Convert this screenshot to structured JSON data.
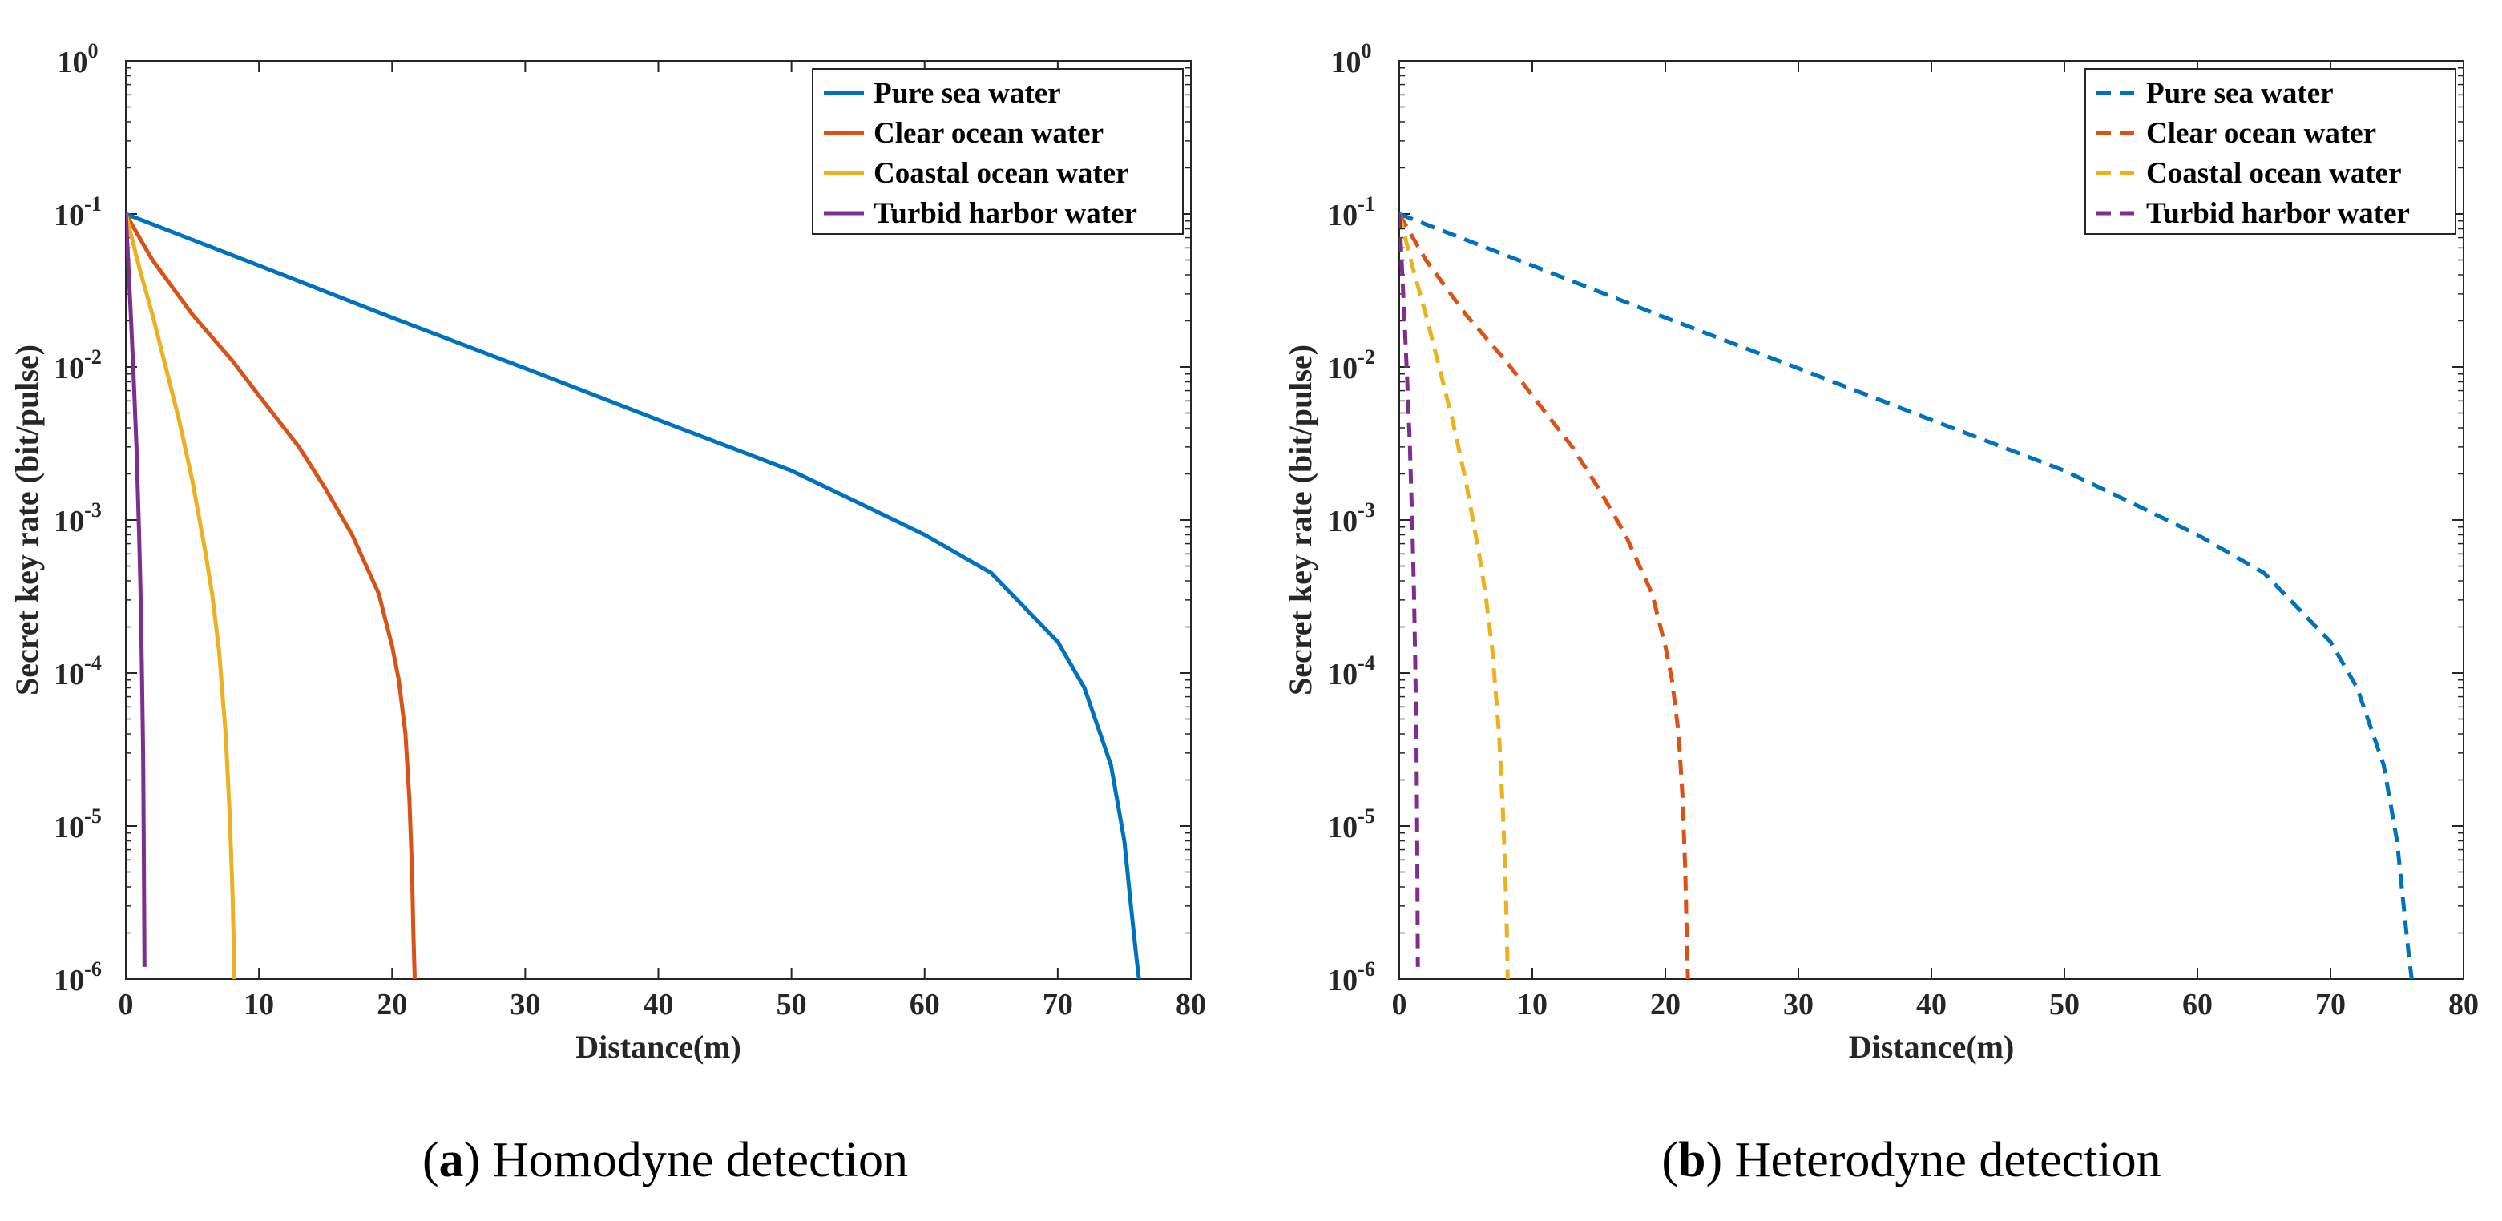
{
  "chart_data": [
    {
      "id": "a",
      "type": "line",
      "caption_letter": "a",
      "caption_title": "Homodyne detection",
      "xlabel": "Distance(m)",
      "ylabel": "Secret key rate (bit/pulse)",
      "xlim": [
        0,
        80
      ],
      "ylim": [
        1e-06,
        1
      ],
      "yscale": "log",
      "xticks": [
        "0",
        "10",
        "20",
        "30",
        "40",
        "50",
        "60",
        "70",
        "80"
      ],
      "yticks": [
        {
          "base": "10",
          "exp": "0"
        },
        {
          "base": "10",
          "exp": "-1"
        },
        {
          "base": "10",
          "exp": "-2"
        },
        {
          "base": "10",
          "exp": "-3"
        },
        {
          "base": "10",
          "exp": "-4"
        },
        {
          "base": "10",
          "exp": "-5"
        },
        {
          "base": "10",
          "exp": "-6"
        }
      ],
      "line_style": "solid",
      "legend_position": "top-right",
      "series": [
        {
          "name": "Pure sea water",
          "color": "#0072BD",
          "x": [
            0,
            10,
            20,
            30,
            40,
            50,
            55,
            60,
            65,
            70,
            72,
            74,
            75,
            75.5,
            75.9,
            76.1
          ],
          "y": [
            0.1,
            0.046,
            0.021,
            0.0098,
            0.0045,
            0.0021,
            0.0013,
            0.0008,
            0.00045,
            0.00016,
            8e-05,
            2.5e-05,
            8e-06,
            3e-06,
            1.4e-06,
            1e-06
          ]
        },
        {
          "name": "Clear ocean water",
          "color": "#D95319",
          "x": [
            0,
            2,
            5,
            8,
            10,
            13,
            15,
            17,
            19,
            20,
            20.5,
            21,
            21.3,
            21.5,
            21.6,
            21.7
          ],
          "y": [
            0.1,
            0.05,
            0.022,
            0.011,
            0.0065,
            0.003,
            0.0016,
            0.0008,
            0.00033,
            0.00015,
            9e-05,
            4e-05,
            1.5e-05,
            5e-06,
            2e-06,
            1e-06
          ]
        },
        {
          "name": "Coastal ocean water",
          "color": "#EDB120",
          "x": [
            0,
            1,
            2,
            3,
            4,
            5,
            6,
            6.5,
            7,
            7.5,
            7.8,
            8.0,
            8.1,
            8.15
          ],
          "y": [
            0.1,
            0.045,
            0.022,
            0.01,
            0.0045,
            0.0018,
            0.0006,
            0.00032,
            0.00014,
            4e-05,
            1.2e-05,
            4e-06,
            1.8e-06,
            1e-06
          ]
        },
        {
          "name": "Turbid harbor water",
          "color": "#7E2F8E",
          "x": [
            0,
            0.2,
            0.4,
            0.6,
            0.8,
            1.0,
            1.1,
            1.2,
            1.3,
            1.35,
            1.4
          ],
          "y": [
            0.1,
            0.045,
            0.02,
            0.008,
            0.003,
            0.0008,
            0.00035,
            0.00012,
            3e-05,
            8e-06,
            1.2e-06
          ]
        }
      ]
    },
    {
      "id": "b",
      "type": "line",
      "caption_letter": "b",
      "caption_title": "Heterodyne detection",
      "xlabel": "Distance(m)",
      "ylabel": "Secret key rate (bit/pulse)",
      "xlim": [
        0,
        80
      ],
      "ylim": [
        1e-06,
        1
      ],
      "yscale": "log",
      "xticks": [
        "0",
        "10",
        "20",
        "30",
        "40",
        "50",
        "60",
        "70",
        "80"
      ],
      "yticks": [
        {
          "base": "10",
          "exp": "0"
        },
        {
          "base": "10",
          "exp": "-1"
        },
        {
          "base": "10",
          "exp": "-2"
        },
        {
          "base": "10",
          "exp": "-3"
        },
        {
          "base": "10",
          "exp": "-4"
        },
        {
          "base": "10",
          "exp": "-5"
        },
        {
          "base": "10",
          "exp": "-6"
        }
      ],
      "line_style": "dashed",
      "legend_position": "top-right",
      "series": [
        {
          "name": "Pure sea water",
          "color": "#0072BD",
          "x": [
            0,
            10,
            20,
            30,
            40,
            50,
            55,
            60,
            65,
            70,
            72,
            74,
            75,
            75.5,
            75.9,
            76.1
          ],
          "y": [
            0.1,
            0.046,
            0.021,
            0.0098,
            0.0045,
            0.0021,
            0.0013,
            0.0008,
            0.00045,
            0.00016,
            8e-05,
            2.5e-05,
            8e-06,
            3e-06,
            1.4e-06,
            1e-06
          ]
        },
        {
          "name": "Clear ocean water",
          "color": "#D95319",
          "x": [
            0,
            2,
            5,
            8,
            10,
            13,
            15,
            17,
            19,
            20,
            20.5,
            21,
            21.3,
            21.5,
            21.6,
            21.7
          ],
          "y": [
            0.1,
            0.05,
            0.022,
            0.011,
            0.0065,
            0.003,
            0.0016,
            0.0008,
            0.00033,
            0.00015,
            9e-05,
            4e-05,
            1.5e-05,
            5e-06,
            2e-06,
            1e-06
          ]
        },
        {
          "name": "Coastal ocean water",
          "color": "#EDB120",
          "x": [
            0,
            1,
            2,
            3,
            4,
            5,
            6,
            6.5,
            7,
            7.5,
            7.8,
            8.0,
            8.1,
            8.15
          ],
          "y": [
            0.1,
            0.045,
            0.022,
            0.01,
            0.0045,
            0.0018,
            0.0006,
            0.00032,
            0.00014,
            4e-05,
            1.2e-05,
            4e-06,
            1.8e-06,
            1e-06
          ]
        },
        {
          "name": "Turbid harbor water",
          "color": "#7E2F8E",
          "x": [
            0,
            0.2,
            0.4,
            0.6,
            0.8,
            1.0,
            1.1,
            1.2,
            1.3,
            1.35,
            1.4
          ],
          "y": [
            0.1,
            0.045,
            0.02,
            0.008,
            0.003,
            0.0008,
            0.00035,
            0.00012,
            3e-05,
            8e-06,
            1.2e-06
          ]
        }
      ]
    }
  ]
}
